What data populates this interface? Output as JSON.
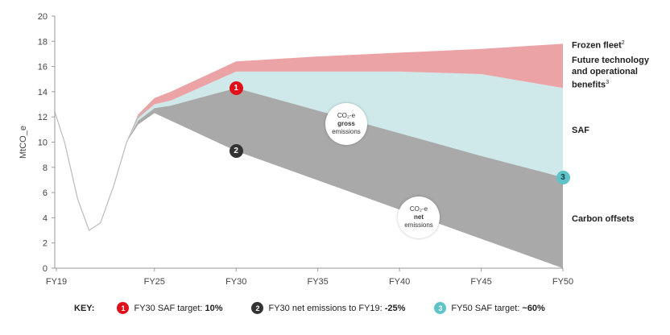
{
  "chart_data": {
    "type": "area",
    "ylabel": "MtCO_e",
    "ylim": [
      0,
      20
    ],
    "yticks": [
      0,
      2,
      4,
      6,
      8,
      10,
      12,
      14,
      16,
      18,
      20
    ],
    "xlim": [
      2018.9,
      2050
    ],
    "xticks": [
      {
        "label": "FY19",
        "value": 2019
      },
      {
        "label": "FY25",
        "value": 2025
      },
      {
        "label": "FY30",
        "value": 2030
      },
      {
        "label": "FY35",
        "value": 2035
      },
      {
        "label": "FY40",
        "value": 2040
      },
      {
        "label": "FY45",
        "value": 2045
      },
      {
        "label": "FY50",
        "value": 2050
      }
    ],
    "grid": false,
    "historic_line": {
      "x": [
        2018.9,
        2019.5,
        2020.3,
        2021.0,
        2021.7,
        2022.5,
        2023.3,
        2024.0,
        2024.5
      ],
      "y": [
        12.4,
        10.0,
        5.5,
        3.0,
        3.6,
        6.5,
        10.0,
        12.0,
        12.6
      ]
    },
    "series": [
      {
        "name": "Carbon offsets",
        "color": "#a9a9a9",
        "x": [
          2023.3,
          2024.0,
          2025.0,
          2026.0,
          2030.0,
          2050.0
        ],
        "upper": [
          10.0,
          11.7,
          12.7,
          12.9,
          14.3,
          7.2
        ],
        "lower": [
          10.0,
          11.4,
          12.3,
          11.7,
          9.3,
          0.0
        ]
      },
      {
        "name": "SAF",
        "color": "#cfe9ea",
        "x": [
          2023.3,
          2024.0,
          2025.0,
          2026.0,
          2030.0,
          2035.0,
          2040.0,
          2045.0,
          2050.0
        ],
        "upper": [
          10.0,
          11.9,
          13.0,
          13.3,
          15.6,
          15.6,
          15.6,
          15.4,
          14.3
        ],
        "lower": [
          10.0,
          11.7,
          12.7,
          12.9,
          14.3,
          12.5,
          10.7,
          8.9,
          7.2
        ]
      },
      {
        "name": "Future technology and operational benefits",
        "color": "#eba3a6",
        "x": [
          2023.3,
          2024.0,
          2025.0,
          2026.0,
          2030.0,
          2035.0,
          2040.0,
          2045.0,
          2050.0
        ],
        "upper": [
          10.0,
          12.2,
          13.5,
          14.0,
          16.4,
          16.8,
          17.1,
          17.4,
          17.8
        ],
        "lower": [
          10.0,
          11.9,
          13.0,
          13.3,
          15.6,
          15.6,
          15.6,
          15.4,
          14.3
        ]
      }
    ],
    "side_labels": {
      "frozen_fleet": "Frozen fleet",
      "frozen_fleet_sup": "2",
      "future_tech": "Future technology and operational benefits",
      "future_tech_sup": "3",
      "saf": "SAF",
      "carbon_offsets": "Carbon offsets"
    },
    "annotations": {
      "gross": {
        "line1": "CO₂-e",
        "line2": "gross",
        "line3": "emissions"
      },
      "net": {
        "line1": "CO₂-e",
        "line2": "net",
        "line3": "emissions"
      }
    },
    "markers": [
      {
        "num": "1",
        "color": "#e0101a",
        "x": 2030,
        "y": 14.3
      },
      {
        "num": "2",
        "color": "#333333",
        "x": 2030,
        "y": 9.3
      },
      {
        "num": "3",
        "color": "#5ec4c9",
        "x": 2050,
        "y": 7.2
      }
    ],
    "key": {
      "title": "KEY:",
      "items": [
        {
          "num": "1",
          "color": "#e0101a",
          "text": "FY30 SAF target:",
          "value": "10%"
        },
        {
          "num": "2",
          "color": "#333333",
          "text": "FY30 net emissions to FY19:",
          "value": "-25%"
        },
        {
          "num": "3",
          "color": "#5ec4c9",
          "text": "FY50 SAF target:",
          "value": "~60%"
        }
      ]
    }
  }
}
